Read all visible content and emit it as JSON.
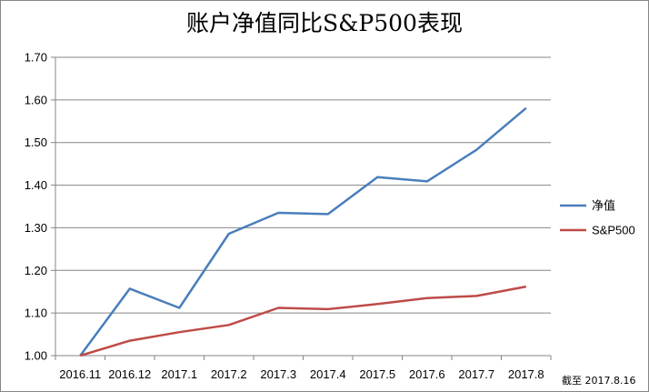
{
  "chart_data": {
    "type": "line",
    "title": "账户净值同比S&P500表现",
    "categories": [
      "2016.11",
      "2016.12",
      "2017.1",
      "2017.2",
      "2017.3",
      "2017.4",
      "2017.5",
      "2017.6",
      "2017.7",
      "2017.8"
    ],
    "ylim": [
      1.0,
      1.7
    ],
    "yticks": [
      "1.00",
      "1.10",
      "1.20",
      "1.30",
      "1.40",
      "1.50",
      "1.60",
      "1.70"
    ],
    "grid": true,
    "legend_position": "right",
    "series": [
      {
        "name": "净值",
        "color": "#4A7EBB",
        "values": [
          1.0,
          1.157,
          1.112,
          1.286,
          1.335,
          1.332,
          1.419,
          1.409,
          1.483,
          1.581
        ]
      },
      {
        "name": "S&P500",
        "color": "#BE4B48",
        "values": [
          1.0,
          1.035,
          1.055,
          1.072,
          1.112,
          1.109,
          1.121,
          1.135,
          1.14,
          1.162
        ]
      }
    ],
    "annotation": "截至 2017.8.16"
  }
}
